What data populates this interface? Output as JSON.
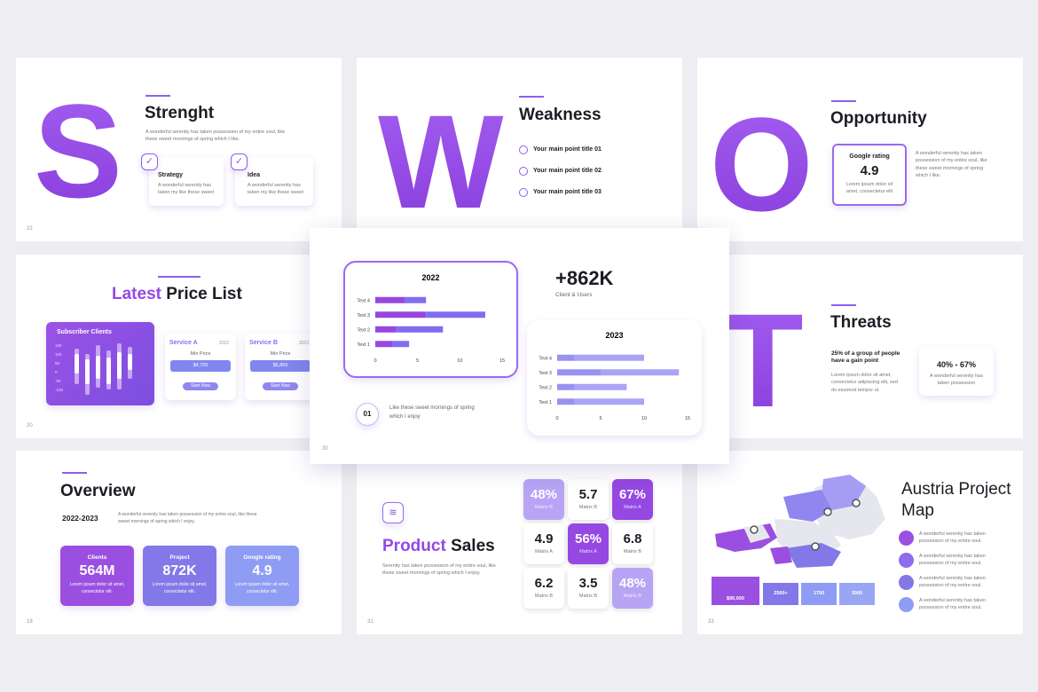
{
  "strength": {
    "letter": "S",
    "title": "Strenght",
    "text": "A wonderful serenity has taken possession of my entire soul, like these sweet mornings of spring which I like.",
    "cards": [
      {
        "title": "Strategy",
        "text": "A wonderful serenity has taken my like these sweet"
      },
      {
        "title": "Idea",
        "text": "A wonderful serenity has taken my like these sweet"
      }
    ],
    "page": "22"
  },
  "weakness": {
    "letter": "W",
    "title": "Weakness",
    "points": [
      "Your main point title 01",
      "Your main point title 02",
      "Your main point title 03"
    ]
  },
  "opportunity": {
    "letter": "O",
    "title": "Opportunity",
    "card_label": "Google rating",
    "card_value": "4.9",
    "card_text": "Lorem ipsum dolor sit amet, consectetur elit",
    "text": "A wonderful serenity has taken possession of my entire soul, like these sweet mornings of spring which I like."
  },
  "price_list": {
    "title_accent": "Latest",
    "title": "Price List",
    "chart_title": "Subscriber Clients",
    "chart_labels": [
      "150",
      "100",
      "50",
      "0",
      "-50",
      "-100"
    ],
    "services": [
      {
        "name": "Service A",
        "year": "2022",
        "label": "Min Price",
        "price": "$4,700",
        "button": "Start Now"
      },
      {
        "name": "Service B",
        "year": "2023",
        "label": "Min Price",
        "price": "$5,800",
        "button": "Start Now"
      }
    ],
    "page": "20"
  },
  "growth": {
    "chart_2022": {
      "type": "bar",
      "title": "2022",
      "categories": [
        "Text 4",
        "Text 3",
        "Text 2",
        "Text 1"
      ],
      "series": [
        {
          "color": "#9747e0",
          "values": [
            3.5,
            6,
            2.5,
            2
          ]
        },
        {
          "color": "#7f6df0",
          "values": [
            2.5,
            7,
            5.5,
            2
          ]
        }
      ],
      "xlim": [
        0,
        15
      ],
      "xticks": [
        0,
        5,
        10,
        15
      ]
    },
    "stat": "+862K",
    "stat_label": "Client & Users",
    "chart_2023": {
      "type": "bar",
      "title": "2023",
      "categories": [
        "Text 4",
        "Text 3",
        "Text 2",
        "Text 1"
      ],
      "series": [
        {
          "color": "#9a92f2",
          "values": [
            2,
            5,
            2,
            2
          ]
        },
        {
          "color": "#aaa3f6",
          "values": [
            8,
            9,
            6,
            8
          ]
        }
      ],
      "xlim": [
        0,
        15
      ],
      "xticks": [
        0,
        5,
        10,
        15
      ]
    },
    "step": "01",
    "step_text": "Like these sweet mornings of spring which I enjoy",
    "page": "30"
  },
  "threats": {
    "letter": "T",
    "title": "Threats",
    "lead": "25% of a group of people have a gain point",
    "text": "Lorem ipsum dolor sit amet, consectetur adipiscing elit, sed do eiusmod tempor ut.",
    "card_value": "40% - 67%",
    "card_text": "A wonderful serenity has taken possession"
  },
  "overview": {
    "title": "Overview",
    "period": "2022-2023",
    "text": "A wonderful serenity has taken possession of my entire soul, like these sweet mornings of spring which I enjoy.",
    "cards": [
      {
        "label": "Clients",
        "value": "564M",
        "text": "Lorem ipsum dolor sit amet, consectetur elit."
      },
      {
        "label": "Project",
        "value": "872K",
        "text": "Lorem ipsum dolor sit amet, consectetur elit."
      },
      {
        "label": "Google rating",
        "value": "4.9",
        "text": "Lorem ipsum dolor sit amet, consectetur elit."
      }
    ],
    "page": "18"
  },
  "product_sales": {
    "title_accent": "Product",
    "title": "Sales",
    "text": "Serenity has taken possession of my entire soul, like these sweet mornings of spring which I enjoy.",
    "matrix": [
      [
        {
          "value": "48%",
          "label": "Matrix B"
        },
        {
          "value": "5.7",
          "label": "Matrix B"
        },
        {
          "value": "67%",
          "label": "Matrix A"
        }
      ],
      [
        {
          "value": "4.9",
          "label": "Matrix A"
        },
        {
          "value": "56%",
          "label": "Matrix A"
        },
        {
          "value": "6.8",
          "label": "Matrix B"
        }
      ],
      [
        {
          "value": "6.2",
          "label": "Matrix B"
        },
        {
          "value": "3.5",
          "label": "Matrix B"
        },
        {
          "value": "48%",
          "label": "Matrix B"
        }
      ]
    ],
    "page": "31"
  },
  "map": {
    "title": "Austria Project Map",
    "items": [
      "A wonderful serenity has taken possession of my entire soul.",
      "A wonderful serenity has taken possession of my entire soul.",
      "A wonderful serenity has taken possession of my entire soul.",
      "A wonderful serenity has taken possession of my entire soul."
    ],
    "boxes": [
      "$90,000",
      "2500+",
      "1750",
      "3000"
    ],
    "page": "33"
  }
}
